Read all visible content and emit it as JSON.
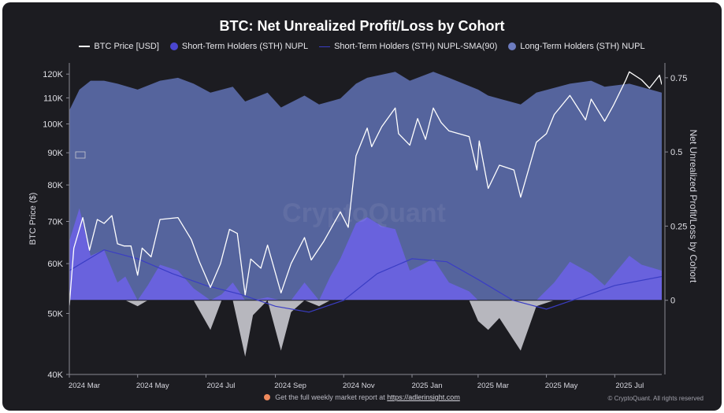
{
  "chart_data": {
    "type": "area",
    "title": "BTC: Net Unrealized Profit/Loss by Cohort",
    "ylabel_left": "BTC Price ($)",
    "ylabel_right": "Net Unrealized Profit/Loss by Cohort",
    "y_left_scale": "log",
    "y_left_lim": [
      40000,
      125000
    ],
    "y_left_ticks": [
      {
        "label": "40K",
        "value": 40000
      },
      {
        "label": "50K",
        "value": 50000
      },
      {
        "label": "60K",
        "value": 60000
      },
      {
        "label": "70K",
        "value": 70000
      },
      {
        "label": "80K",
        "value": 80000
      },
      {
        "label": "90K",
        "value": 90000
      },
      {
        "label": "100K",
        "value": 100000
      },
      {
        "label": "110K",
        "value": 110000
      },
      {
        "label": "120K",
        "value": 120000
      }
    ],
    "y_right_lim": [
      -0.25,
      0.8
    ],
    "y_right_ticks": [
      {
        "label": "0",
        "value": 0
      },
      {
        "label": "0.25",
        "value": 0.25
      },
      {
        "label": "0.5",
        "value": 0.5
      },
      {
        "label": "0.75",
        "value": 0.75
      }
    ],
    "x_lim": [
      "2024-03-01",
      "2025-08-12"
    ],
    "x_ticks": [
      {
        "label": "2024 Mar",
        "value": "2024-03-01"
      },
      {
        "label": "2024 May",
        "value": "2024-05-01"
      },
      {
        "label": "2024 Jul",
        "value": "2024-07-01"
      },
      {
        "label": "2024 Sep",
        "value": "2024-09-01"
      },
      {
        "label": "2024 Nov",
        "value": "2024-11-01"
      },
      {
        "label": "2025 Jan",
        "value": "2025-01-01"
      },
      {
        "label": "2025 Mar",
        "value": "2025-03-01"
      },
      {
        "label": "2025 May",
        "value": "2025-05-01"
      },
      {
        "label": "2025 Jul",
        "value": "2025-07-01"
      }
    ],
    "grid": false,
    "legend_position": "top-center",
    "series": [
      {
        "name": "BTC Price [USD]",
        "axis": "left",
        "color": "#ffffff",
        "points": [
          [
            "2024-03-01",
            51500
          ],
          [
            "2024-03-05",
            63500
          ],
          [
            "2024-03-13",
            71000
          ],
          [
            "2024-03-19",
            63000
          ],
          [
            "2024-03-26",
            70500
          ],
          [
            "2024-04-01",
            69500
          ],
          [
            "2024-04-08",
            71500
          ],
          [
            "2024-04-13",
            64500
          ],
          [
            "2024-04-19",
            64000
          ],
          [
            "2024-04-25",
            64000
          ],
          [
            "2024-05-01",
            57500
          ],
          [
            "2024-05-05",
            63500
          ],
          [
            "2024-05-13",
            61500
          ],
          [
            "2024-05-21",
            70500
          ],
          [
            "2024-06-06",
            71000
          ],
          [
            "2024-06-18",
            65500
          ],
          [
            "2024-06-25",
            60500
          ],
          [
            "2024-07-05",
            55000
          ],
          [
            "2024-07-14",
            60000
          ],
          [
            "2024-07-22",
            68000
          ],
          [
            "2024-07-29",
            67000
          ],
          [
            "2024-08-05",
            53500
          ],
          [
            "2024-08-10",
            61000
          ],
          [
            "2024-08-19",
            59000
          ],
          [
            "2024-08-25",
            64200
          ],
          [
            "2024-09-06",
            53900
          ],
          [
            "2024-09-15",
            60000
          ],
          [
            "2024-09-27",
            66000
          ],
          [
            "2024-10-03",
            60800
          ],
          [
            "2024-10-14",
            65000
          ],
          [
            "2024-10-29",
            72500
          ],
          [
            "2024-11-05",
            68500
          ],
          [
            "2024-11-12",
            89000
          ],
          [
            "2024-11-22",
            98500
          ],
          [
            "2024-11-26",
            92000
          ],
          [
            "2024-12-05",
            99000
          ],
          [
            "2024-12-17",
            106000
          ],
          [
            "2024-12-20",
            96500
          ],
          [
            "2024-12-30",
            92500
          ],
          [
            "2025-01-06",
            102000
          ],
          [
            "2025-01-13",
            94500
          ],
          [
            "2025-01-20",
            106000
          ],
          [
            "2025-01-27",
            100500
          ],
          [
            "2025-02-03",
            97500
          ],
          [
            "2025-02-21",
            95500
          ],
          [
            "2025-02-28",
            84500
          ],
          [
            "2025-03-02",
            94000
          ],
          [
            "2025-03-10",
            79000
          ],
          [
            "2025-03-20",
            86000
          ],
          [
            "2025-04-02",
            84500
          ],
          [
            "2025-04-08",
            76500
          ],
          [
            "2025-04-22",
            93500
          ],
          [
            "2025-05-01",
            96500
          ],
          [
            "2025-05-08",
            103500
          ],
          [
            "2025-05-22",
            111000
          ],
          [
            "2025-06-05",
            101500
          ],
          [
            "2025-06-10",
            109500
          ],
          [
            "2025-06-22",
            101000
          ],
          [
            "2025-06-30",
            107200
          ],
          [
            "2025-07-11",
            117500
          ],
          [
            "2025-07-14",
            121000
          ],
          [
            "2025-07-25",
            117500
          ],
          [
            "2025-08-01",
            114000
          ],
          [
            "2025-08-10",
            119500
          ],
          [
            "2025-08-12",
            115500
          ]
        ]
      },
      {
        "name": "Short-Term Holders (STH) NUPL",
        "axis": "right",
        "color": "#5b57d9",
        "points": [
          [
            "2024-03-01",
            0.2
          ],
          [
            "2024-03-10",
            0.31
          ],
          [
            "2024-03-20",
            0.15
          ],
          [
            "2024-04-01",
            0.17
          ],
          [
            "2024-04-13",
            0.06
          ],
          [
            "2024-04-20",
            0.08
          ],
          [
            "2024-05-01",
            -0.02
          ],
          [
            "2024-05-10",
            0.05
          ],
          [
            "2024-05-21",
            0.12
          ],
          [
            "2024-06-06",
            0.1
          ],
          [
            "2024-06-20",
            0.04
          ],
          [
            "2024-07-05",
            -0.1
          ],
          [
            "2024-07-15",
            0.02
          ],
          [
            "2024-07-25",
            0.06
          ],
          [
            "2024-08-05",
            -0.19
          ],
          [
            "2024-08-12",
            -0.05
          ],
          [
            "2024-08-25",
            0.01
          ],
          [
            "2024-09-06",
            -0.17
          ],
          [
            "2024-09-15",
            -0.04
          ],
          [
            "2024-09-27",
            0.06
          ],
          [
            "2024-10-10",
            -0.02
          ],
          [
            "2024-10-20",
            0.08
          ],
          [
            "2024-10-29",
            0.14
          ],
          [
            "2024-11-12",
            0.26
          ],
          [
            "2024-11-22",
            0.28
          ],
          [
            "2024-12-05",
            0.25
          ],
          [
            "2024-12-17",
            0.24
          ],
          [
            "2024-12-30",
            0.1
          ],
          [
            "2025-01-10",
            0.12
          ],
          [
            "2025-01-20",
            0.14
          ],
          [
            "2025-02-03",
            0.06
          ],
          [
            "2025-02-21",
            0.03
          ],
          [
            "2025-03-01",
            -0.07
          ],
          [
            "2025-03-10",
            -0.1
          ],
          [
            "2025-03-20",
            -0.06
          ],
          [
            "2025-04-08",
            -0.17
          ],
          [
            "2025-04-22",
            -0.02
          ],
          [
            "2025-05-08",
            0.06
          ],
          [
            "2025-05-22",
            0.13
          ],
          [
            "2025-06-10",
            0.09
          ],
          [
            "2025-06-22",
            0.05
          ],
          [
            "2025-07-14",
            0.15
          ],
          [
            "2025-07-25",
            0.12
          ],
          [
            "2025-08-12",
            0.1
          ]
        ]
      },
      {
        "name": "Short-Term Holders (STH) NUPL-SMA(90)",
        "axis": "right",
        "color": "#3a3dc4",
        "points": [
          [
            "2024-03-01",
            0.1
          ],
          [
            "2024-04-01",
            0.17
          ],
          [
            "2024-05-01",
            0.14
          ],
          [
            "2024-06-01",
            0.09
          ],
          [
            "2024-07-01",
            0.05
          ],
          [
            "2024-08-01",
            0.02
          ],
          [
            "2024-09-01",
            -0.02
          ],
          [
            "2024-10-01",
            -0.04
          ],
          [
            "2024-11-01",
            0.0
          ],
          [
            "2024-12-01",
            0.09
          ],
          [
            "2025-01-01",
            0.14
          ],
          [
            "2025-02-01",
            0.13
          ],
          [
            "2025-03-01",
            0.07
          ],
          [
            "2025-04-01",
            0.0
          ],
          [
            "2025-05-01",
            -0.03
          ],
          [
            "2025-06-01",
            0.01
          ],
          [
            "2025-07-01",
            0.05
          ],
          [
            "2025-08-12",
            0.08
          ]
        ]
      },
      {
        "name": "Long-Term Holders (STH) NUPL",
        "axis": "right",
        "color": "#5a6aa8",
        "points": [
          [
            "2024-03-01",
            0.64
          ],
          [
            "2024-03-10",
            0.71
          ],
          [
            "2024-03-20",
            0.74
          ],
          [
            "2024-04-01",
            0.74
          ],
          [
            "2024-04-13",
            0.73
          ],
          [
            "2024-05-01",
            0.71
          ],
          [
            "2024-05-21",
            0.74
          ],
          [
            "2024-06-06",
            0.75
          ],
          [
            "2024-06-20",
            0.73
          ],
          [
            "2024-07-05",
            0.7
          ],
          [
            "2024-07-25",
            0.72
          ],
          [
            "2024-08-05",
            0.67
          ],
          [
            "2024-08-25",
            0.7
          ],
          [
            "2024-09-06",
            0.65
          ],
          [
            "2024-09-27",
            0.69
          ],
          [
            "2024-10-10",
            0.66
          ],
          [
            "2024-10-29",
            0.68
          ],
          [
            "2024-11-12",
            0.73
          ],
          [
            "2024-11-22",
            0.75
          ],
          [
            "2024-12-17",
            0.77
          ],
          [
            "2024-12-30",
            0.74
          ],
          [
            "2025-01-20",
            0.77
          ],
          [
            "2025-02-03",
            0.75
          ],
          [
            "2025-03-01",
            0.71
          ],
          [
            "2025-03-10",
            0.69
          ],
          [
            "2025-04-08",
            0.66
          ],
          [
            "2025-04-22",
            0.7
          ],
          [
            "2025-05-22",
            0.73
          ],
          [
            "2025-06-10",
            0.74
          ],
          [
            "2025-06-22",
            0.72
          ],
          [
            "2025-07-14",
            0.73
          ],
          [
            "2025-08-12",
            0.7
          ]
        ]
      }
    ],
    "watermark": "CryptoQuant"
  },
  "footer": {
    "report_text": "Get the full weekly market report at",
    "report_link": "https://adlerinsight.com",
    "copyright": "© CryptoQuant. All rights reserved"
  }
}
